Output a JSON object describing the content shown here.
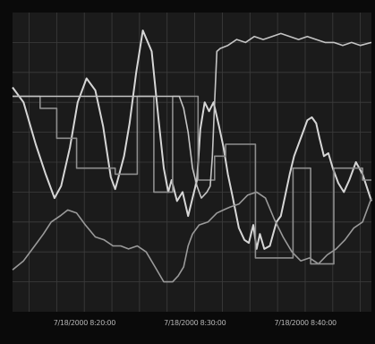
{
  "chart_data": {
    "type": "line",
    "title": "",
    "xlabel": "",
    "ylabel": "",
    "grid": true,
    "x_tick_labels": [
      "7/18/2000 8:20:00",
      "7/18/2000 8:30:00",
      "7/18/2000 8:40:00"
    ],
    "x_tick_minutes": [
      20,
      30,
      40
    ],
    "xlim": [
      13.5,
      46.0
    ],
    "ylim": [
      0,
      100
    ],
    "series": [
      {
        "color": "#d6d6d6",
        "x": [
          13.5,
          14.5,
          15.6,
          16.5,
          17.3,
          17.9,
          18.7,
          19.4,
          20.2,
          21.0,
          21.7,
          22.4,
          22.8,
          23.1,
          23.6,
          24.1,
          24.7,
          25.3,
          26.1,
          26.7,
          27.2,
          27.6,
          27.9,
          28.4,
          28.9,
          29.4,
          29.8,
          30.2,
          30.5,
          30.9,
          31.3,
          31.7,
          32.2,
          32.6,
          33.0,
          33.4,
          34.0,
          34.5,
          34.9,
          35.3,
          35.6,
          35.9,
          36.3,
          36.8,
          37.4,
          37.8,
          38.2,
          38.6,
          39.0,
          39.7,
          40.2,
          40.6,
          41.0,
          41.3,
          41.7,
          42.1,
          42.5,
          43.0,
          43.5,
          44.0,
          44.6,
          45.2,
          46.0
        ],
        "y": [
          75,
          70,
          56,
          46,
          38,
          42,
          55,
          70,
          78,
          74,
          62,
          45,
          41,
          45,
          52,
          63,
          80,
          94,
          87,
          65,
          48,
          40,
          44,
          37,
          40,
          32,
          38,
          44,
          61,
          70,
          67,
          70,
          62,
          55,
          46,
          39,
          28,
          24,
          23,
          29,
          21,
          26,
          21,
          22,
          30,
          32,
          39,
          46,
          52,
          59,
          64,
          65,
          63,
          58,
          52,
          53,
          48,
          43,
          40,
          44,
          50,
          46,
          37
        ]
      },
      {
        "color": "#9a9a9a",
        "x": [
          13.5,
          14.5,
          15.5,
          16.3,
          17.0,
          17.8,
          18.5,
          19.3,
          20.1,
          21.0,
          21.8,
          22.6,
          23.3,
          24.0,
          24.8,
          25.6,
          26.4,
          27.2,
          28.0,
          28.5,
          29.0,
          29.4,
          29.8,
          30.4,
          31.2,
          32.0,
          32.6,
          33.2,
          34.0,
          34.8,
          35.6,
          36.4,
          37.2,
          38.0,
          38.8,
          39.6,
          40.4,
          41.2,
          42.0,
          42.8,
          43.6,
          44.4,
          45.2,
          46.0
        ],
        "y": [
          14,
          17,
          22,
          26,
          30,
          32,
          34,
          33,
          29,
          25,
          24,
          22,
          22,
          21,
          22,
          20,
          15,
          10,
          10,
          12,
          15,
          22,
          26,
          29,
          30,
          33,
          34,
          35,
          36,
          39,
          40,
          38,
          31,
          25,
          20,
          17,
          18,
          16,
          19,
          21,
          24,
          28,
          30,
          38
        ]
      },
      {
        "color": "#8e8e8e",
        "x": [
          13.5,
          16.0,
          16.0,
          17.5,
          17.5,
          19.3,
          19.3,
          22.8,
          22.8,
          24.8,
          24.8,
          26.3,
          26.3,
          28.0,
          28.0,
          30.3,
          30.3,
          31.8,
          31.8,
          32.8,
          32.8,
          35.5,
          35.5,
          38.9,
          38.9,
          40.5,
          40.5,
          42.6,
          42.6,
          45.2,
          45.2,
          46.0
        ],
        "y": [
          72,
          72,
          68,
          68,
          58,
          58,
          48,
          48,
          46,
          46,
          72,
          72,
          40,
          40,
          72,
          72,
          44,
          44,
          52,
          52,
          56,
          56,
          18,
          18,
          48,
          48,
          16,
          16,
          48,
          48,
          44,
          44
        ]
      },
      {
        "color": "#c4c4c4",
        "x": [
          13.5,
          15.0,
          16.5,
          18.0,
          19.5,
          21.0,
          22.5,
          24.0,
          25.0,
          26.0,
          26.8,
          27.6,
          28.2,
          28.6,
          29.0,
          29.4,
          29.8,
          30.2,
          30.6,
          31.1,
          31.4,
          31.6,
          31.8,
          32.0,
          32.3,
          33.0,
          33.8,
          34.6,
          35.4,
          36.2,
          37.0,
          37.8,
          38.6,
          39.4,
          40.2,
          41.0,
          41.8,
          42.6,
          43.4,
          44.2,
          45.0,
          46.0
        ],
        "y": [
          72,
          72,
          72,
          72,
          72,
          72,
          72,
          72,
          72,
          72,
          72,
          72,
          72,
          72,
          68,
          60,
          48,
          42,
          38,
          40,
          42,
          52,
          70,
          87,
          88,
          89,
          91,
          90,
          92,
          91,
          92,
          93,
          92,
          91,
          92,
          91,
          90,
          90,
          89,
          90,
          89,
          90
        ]
      }
    ]
  },
  "colors": {
    "background": "#0a0a0a",
    "plot_background": "#1b1b1b",
    "grid": "#3d3d3d",
    "text": "#b5b5b5"
  }
}
